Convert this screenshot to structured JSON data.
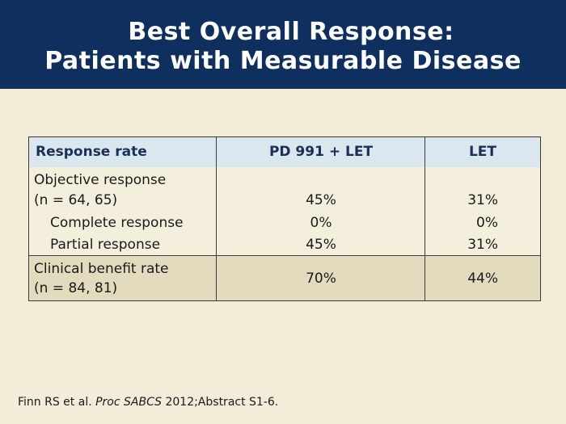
{
  "title": {
    "line1": "Best Overall Response:",
    "line2": "Patients with Measurable Disease"
  },
  "table": {
    "headers": [
      "Response rate",
      "PD 991 + LET",
      "LET"
    ],
    "rows": [
      {
        "label_line1": "Objective response",
        "label_line2": "(n = 64, 65)",
        "pd": "45%",
        "let": "31%"
      },
      {
        "label": "Complete response",
        "pd": "0%",
        "let": "0%"
      },
      {
        "label": "Partial response",
        "pd": "45%",
        "let": "31%"
      },
      {
        "label_line1": "Clinical benefit rate",
        "label_line2": "(n = 84, 81)",
        "pd": "70%",
        "let": "44%"
      }
    ]
  },
  "footnote": {
    "authors": "Finn RS et al. ",
    "journal": "Proc SABCS",
    "rest": " 2012;Abstract S1-6."
  }
}
